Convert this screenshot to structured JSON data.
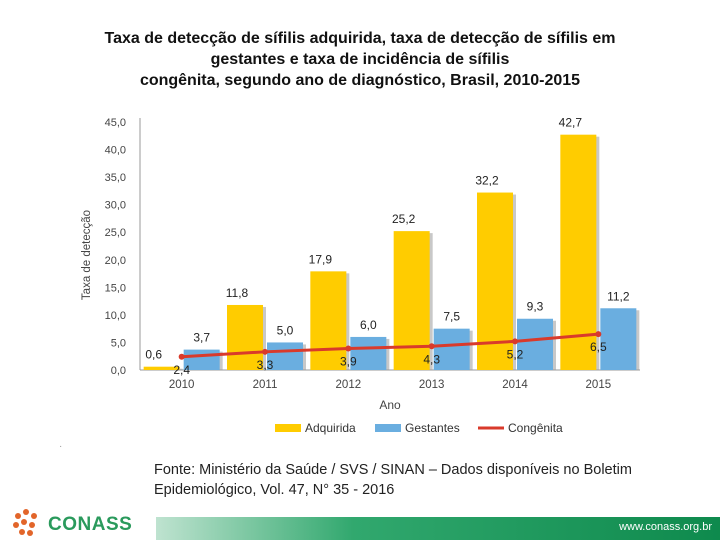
{
  "title": {
    "line1": "Taxa de detecção de sífilis adquirida, taxa de detecção de sífilis em",
    "line2": "gestantes e taxa de incidência de sífilis",
    "line3": "congênita, segundo ano de diagnóstico, Brasil, 2010-2015"
  },
  "chart_data": {
    "type": "bar",
    "categories": [
      "2010",
      "2011",
      "2012",
      "2013",
      "2014",
      "2015"
    ],
    "series": [
      {
        "name": "Adquirida",
        "kind": "bar",
        "color": "#ffcc00",
        "values": [
          0.6,
          11.8,
          17.9,
          25.2,
          32.2,
          42.7
        ],
        "labels": [
          "0,6",
          "11,8",
          "17,9",
          "25,2",
          "32,2",
          "42,7"
        ]
      },
      {
        "name": "Gestantes",
        "kind": "bar",
        "color": "#6aaee0",
        "values": [
          3.7,
          5.0,
          6.0,
          7.5,
          9.3,
          11.2
        ],
        "labels": [
          "3,7",
          "5,0",
          "6,0",
          "7,5",
          "9,3",
          "11,2"
        ]
      },
      {
        "name": "Congênita",
        "kind": "line",
        "color": "#d93a2b",
        "values": [
          2.4,
          3.3,
          3.9,
          4.3,
          5.2,
          6.5
        ],
        "labels": [
          "2,4",
          "3,3",
          "3,9",
          "4,3",
          "5,2",
          "6,5"
        ]
      }
    ],
    "ylim": [
      0,
      45
    ],
    "yticks": [
      "0,0",
      "5,0",
      "10,0",
      "15,0",
      "20,0",
      "25,0",
      "30,0",
      "35,0",
      "40,0",
      "45,0"
    ],
    "xlabel": "Ano",
    "ylabel": "Taxa de detecção",
    "legend_position": "bottom"
  },
  "source": {
    "line1": "Fonte: Ministério da Saúde / SVS / SINAN – Dados disponíveis no Boletim",
    "line2": "Epidemiológico, Vol. 47, N° 35 - 2016"
  },
  "footer": {
    "url": "www.conass.org.br",
    "logo_text": "CONASS"
  },
  "colors": {
    "accent_green": "#2a9a5c"
  }
}
